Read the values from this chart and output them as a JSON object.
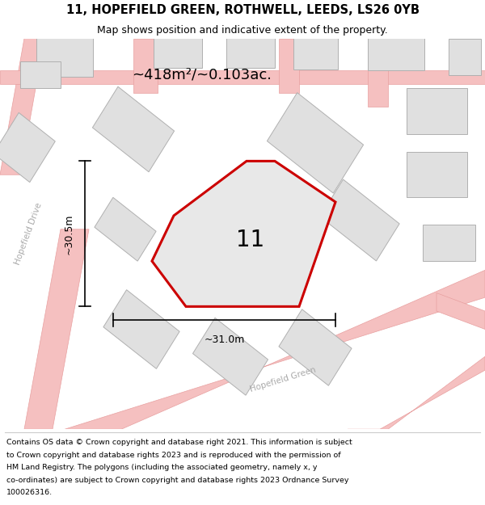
{
  "title_line1": "11, HOPEFIELD GREEN, ROTHWELL, LEEDS, LS26 0YB",
  "title_line2": "Map shows position and indicative extent of the property.",
  "area_label": "~418m²/~0.103ac.",
  "property_number": "11",
  "dim_vertical": "~30.5m",
  "dim_horizontal": "~31.0m",
  "road_label_1": "Hopefield Drive",
  "road_label_2": "Hopefield Green",
  "footer_lines": [
    "Contains OS data © Crown copyright and database right 2021. This information is subject",
    "to Crown copyright and database rights 2023 and is reproduced with the permission of",
    "HM Land Registry. The polygons (including the associated geometry, namely x, y",
    "co-ordinates) are subject to Crown copyright and database rights 2023 Ordnance Survey",
    "100026316."
  ],
  "map_bg": "#f5f3f3",
  "property_fill": "#e8e8e8",
  "property_edge": "#cc0000",
  "building_fill": "#e0e0e0",
  "building_edge": "#b0b0b0",
  "road_color": "#f0a0a0",
  "road_lw": 1.0,
  "title_fontsize": 10.5,
  "subtitle_fontsize": 9.0,
  "area_fontsize": 13.0,
  "dim_fontsize": 9.0,
  "footer_fontsize": 6.8,
  "road_label_color": "#aaaaaa",
  "road_label_fontsize": 7.5
}
